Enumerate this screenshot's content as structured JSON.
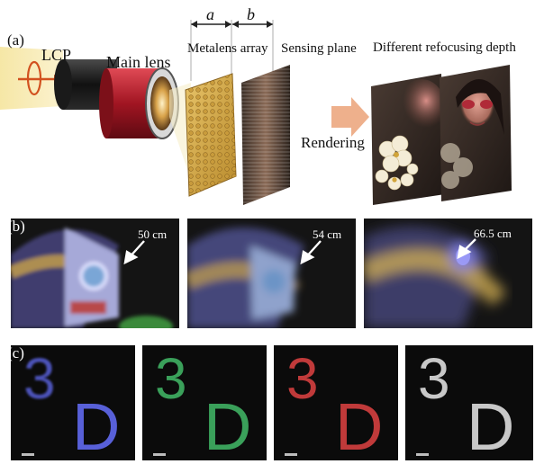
{
  "panel_a": {
    "label": "(a)",
    "lcp": "LCP",
    "main_lens": "Main lens",
    "dim_a": "a",
    "dim_b": "b",
    "metalens_array": "Metalens array",
    "sensing_plane": "Sensing plane",
    "different_refocusing_depth": "Different refocusing depth",
    "rendering": "Rendering"
  },
  "panel_b": {
    "label": "(b)",
    "distances": [
      "50 cm",
      "54 cm",
      "66.5 cm"
    ]
  },
  "panel_c": {
    "label": "(c)",
    "text_digit": "3",
    "text_letter": "D",
    "tiles": [
      {
        "color": "#5860d8"
      },
      {
        "color": "#3aa05a"
      },
      {
        "color": "#c03a3a"
      },
      {
        "color": "#c8c8c8"
      }
    ]
  }
}
